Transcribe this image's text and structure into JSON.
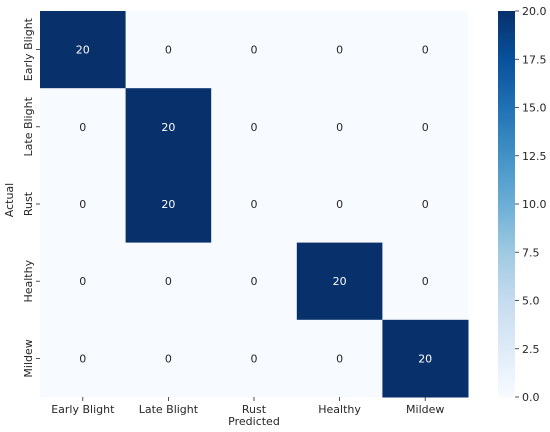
{
  "chart_data": {
    "type": "heatmap",
    "rows": [
      "Early Blight",
      "Late Blight",
      "Rust",
      "Healthy",
      "Mildew"
    ],
    "columns": [
      "Early Blight",
      "Late Blight",
      "Rust",
      "Healthy",
      "Mildew"
    ],
    "values": [
      [
        20,
        0,
        0,
        0,
        0
      ],
      [
        0,
        20,
        0,
        0,
        0
      ],
      [
        0,
        20,
        0,
        0,
        0
      ],
      [
        0,
        0,
        0,
        20,
        0
      ],
      [
        0,
        0,
        0,
        0,
        20
      ]
    ],
    "xlabel": "Predicted",
    "ylabel": "Actual",
    "colorbar": {
      "range": [
        0,
        20
      ],
      "ticks": [
        "0.0",
        "2.5",
        "5.0",
        "7.5",
        "10.0",
        "12.5",
        "15.0",
        "17.5",
        "20.0"
      ],
      "colormap": "Blues"
    },
    "colors": {
      "low": "#f7fbff",
      "high": "#08306b",
      "text_on_dark": "#ffffff",
      "text_on_light": "#262626"
    }
  }
}
